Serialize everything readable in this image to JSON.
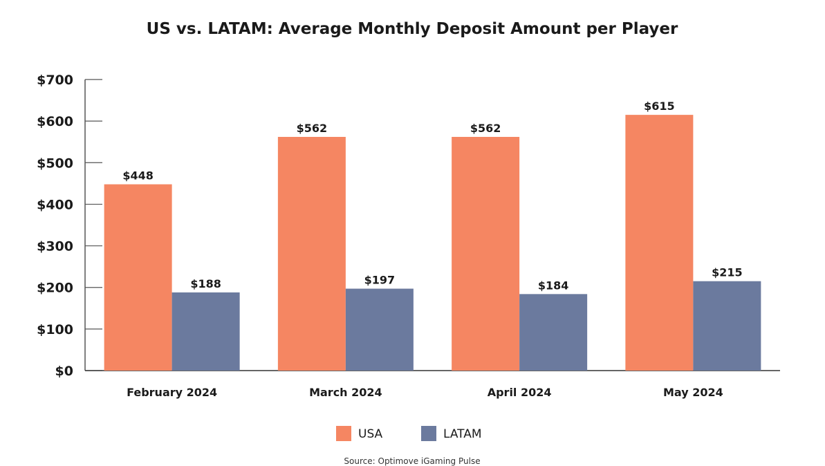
{
  "chart_data": {
    "type": "bar",
    "title": "US vs. LATAM: Average Monthly Deposit Amount per Player",
    "categories": [
      "February 2024",
      "March 2024",
      "April 2024",
      "May 2024"
    ],
    "series": [
      {
        "name": "USA",
        "color": "#F58662",
        "values": [
          448,
          562,
          562,
          615
        ],
        "labels": [
          "$448",
          "$562",
          "$562",
          "$615"
        ]
      },
      {
        "name": "LATAM",
        "color": "#6B7A9E",
        "values": [
          188,
          197,
          184,
          215
        ],
        "labels": [
          "$188",
          "$197",
          "$184",
          "$215"
        ]
      }
    ],
    "yticks": [
      0,
      100,
      200,
      300,
      400,
      500,
      600,
      700
    ],
    "ytick_labels": [
      "$0",
      "$100",
      "$200",
      "$300",
      "$400",
      "$500",
      "$600",
      "$700"
    ],
    "ylim": [
      0,
      700
    ],
    "xlabel": "",
    "ylabel": "",
    "grid": false,
    "legend_position": "bottom-center",
    "source": "Source: Optimove iGaming Pulse"
  }
}
